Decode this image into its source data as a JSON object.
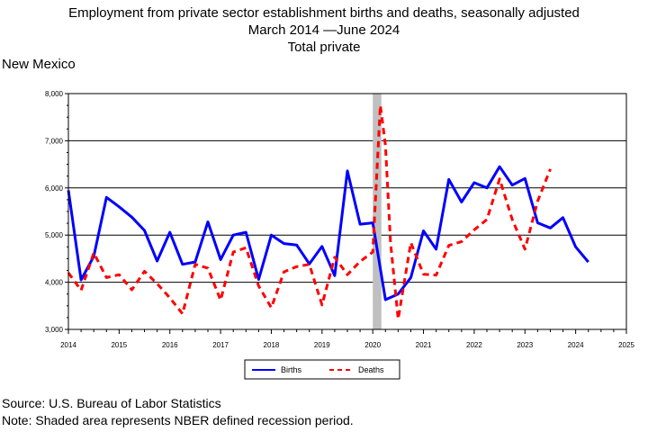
{
  "header": {
    "title": "Employment from private sector establishment births and deaths, seasonally adjusted",
    "subtitle": "March 2014  —June 2024",
    "subtitle2": "Total private",
    "region": "New Mexico"
  },
  "footer": {
    "source": "Source: U.S. Bureau of Labor Statistics",
    "note": "Note: Shaded area represents NBER defined recession period."
  },
  "chart_data": {
    "type": "line",
    "xlim": [
      2014,
      2025
    ],
    "ylim": [
      3000,
      8000
    ],
    "x_ticks": [
      "2014",
      "2015",
      "2016",
      "2017",
      "2018",
      "2019",
      "2020",
      "2021",
      "2022",
      "2023",
      "2024",
      "2025"
    ],
    "y_ticks": [
      "3,000",
      "4,000",
      "5,000",
      "6,000",
      "7,000",
      "8,000"
    ],
    "grid": true,
    "legend_position": "bottom",
    "recession": [
      2020.0,
      2020.17
    ],
    "series": [
      {
        "name": "Births",
        "color": "#0000ff",
        "style": "solid",
        "x": [
          2014.0,
          2014.25,
          2014.5,
          2014.75,
          2015.0,
          2015.25,
          2015.5,
          2015.75,
          2016.0,
          2016.25,
          2016.5,
          2016.75,
          2017.0,
          2017.25,
          2017.5,
          2017.75,
          2018.0,
          2018.25,
          2018.5,
          2018.75,
          2019.0,
          2019.25,
          2019.5,
          2019.75,
          2020.0,
          2020.25,
          2020.5,
          2020.75,
          2021.0,
          2021.25,
          2021.5,
          2021.75,
          2022.0,
          2022.25,
          2022.5,
          2022.75,
          2023.0,
          2023.25,
          2023.5,
          2023.75,
          2024.0,
          2024.25
        ],
        "y": [
          5950,
          4050,
          4550,
          5800,
          5600,
          5380,
          5100,
          4450,
          5060,
          4380,
          4430,
          5280,
          4480,
          5000,
          5060,
          4060,
          5000,
          4820,
          4790,
          4390,
          4760,
          4140,
          6360,
          5230,
          5260,
          3630,
          3750,
          4100,
          5090,
          4700,
          6180,
          5700,
          6110,
          6000,
          6450,
          6060,
          6200,
          5260,
          5150,
          5370,
          4750,
          4430
        ]
      },
      {
        "name": "Deaths",
        "color": "#ff0000",
        "style": "dashed",
        "x": [
          2014.0,
          2014.25,
          2014.5,
          2014.75,
          2015.0,
          2015.25,
          2015.5,
          2015.75,
          2016.0,
          2016.25,
          2016.5,
          2016.75,
          2017.0,
          2017.25,
          2017.5,
          2017.75,
          2018.0,
          2018.25,
          2018.5,
          2018.75,
          2019.0,
          2019.25,
          2019.5,
          2019.75,
          2020.0,
          2020.15,
          2020.25,
          2020.35,
          2020.5,
          2020.75,
          2021.0,
          2021.25,
          2021.5,
          2021.75,
          2022.0,
          2022.25,
          2022.5,
          2022.75,
          2023.0,
          2023.25,
          2023.5
        ],
        "y": [
          4200,
          3830,
          4620,
          4100,
          4160,
          3840,
          4230,
          3970,
          3670,
          3330,
          4380,
          4300,
          3620,
          4640,
          4730,
          3920,
          3460,
          4220,
          4330,
          4380,
          3520,
          4530,
          4160,
          4440,
          4640,
          7750,
          6900,
          4850,
          3220,
          4840,
          4170,
          4150,
          4780,
          4860,
          5110,
          5330,
          6190,
          5330,
          4700,
          5720,
          6400
        ]
      }
    ]
  }
}
